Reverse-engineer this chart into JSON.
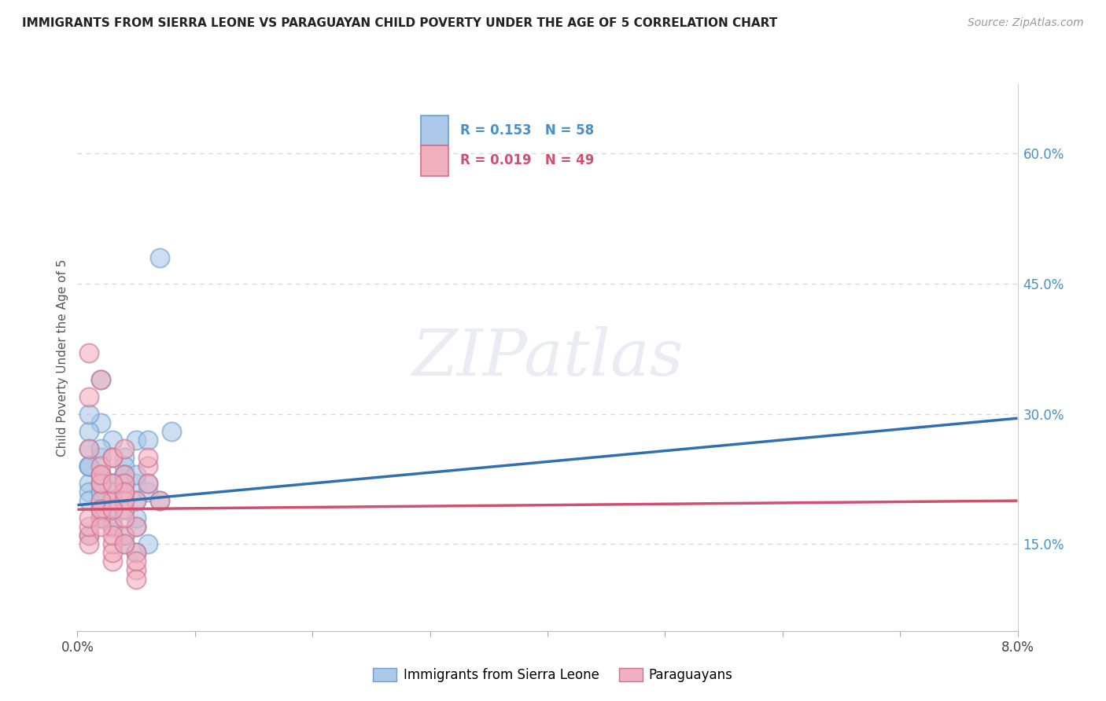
{
  "title": "IMMIGRANTS FROM SIERRA LEONE VS PARAGUAYAN CHILD POVERTY UNDER THE AGE OF 5 CORRELATION CHART",
  "source": "Source: ZipAtlas.com",
  "ylabel": "Child Poverty Under the Age of 5",
  "y_ticks": [
    0.15,
    0.3,
    0.45,
    0.6
  ],
  "y_tick_labels": [
    "15.0%",
    "30.0%",
    "45.0%",
    "60.0%"
  ],
  "x_ticks": [
    0.0,
    0.01,
    0.02,
    0.03,
    0.04,
    0.05,
    0.06,
    0.07,
    0.08
  ],
  "series1_name": "Immigrants from Sierra Leone",
  "series1_color": "#adc8e8",
  "series1_edge_color": "#6a9fd0",
  "series1_R": 0.153,
  "series1_N": 58,
  "series2_name": "Paraguayans",
  "series2_color": "#f0b0c0",
  "series2_edge_color": "#d07090",
  "series2_R": 0.019,
  "series2_N": 49,
  "trendline1_color": "#3070b0",
  "trendline2_color": "#d05070",
  "trendline1_x": [
    0.0,
    0.08
  ],
  "trendline1_y": [
    0.195,
    0.295
  ],
  "trendline2_x": [
    0.0,
    0.08
  ],
  "trendline2_y": [
    0.19,
    0.2
  ],
  "watermark": "ZIPatlas",
  "background_color": "#ffffff",
  "grid_color": "#d8d8d8",
  "title_color": "#222222",
  "sierra_leone_x": [
    0.001,
    0.002,
    0.001,
    0.003,
    0.002,
    0.004,
    0.001,
    0.003,
    0.005,
    0.002,
    0.001,
    0.002,
    0.003,
    0.004,
    0.002,
    0.001,
    0.003,
    0.005,
    0.006,
    0.002,
    0.001,
    0.003,
    0.002,
    0.004,
    0.001,
    0.002,
    0.003,
    0.005,
    0.004,
    0.002,
    0.001,
    0.003,
    0.006,
    0.002,
    0.004,
    0.003,
    0.005,
    0.002,
    0.001,
    0.004,
    0.007,
    0.003,
    0.005,
    0.002,
    0.004,
    0.006,
    0.003,
    0.001,
    0.005,
    0.002,
    0.008,
    0.004,
    0.006,
    0.003,
    0.005,
    0.007,
    0.002,
    0.004
  ],
  "sierra_leone_y": [
    0.22,
    0.2,
    0.24,
    0.2,
    0.23,
    0.25,
    0.21,
    0.19,
    0.27,
    0.18,
    0.24,
    0.2,
    0.17,
    0.22,
    0.29,
    0.26,
    0.19,
    0.22,
    0.27,
    0.21,
    0.16,
    0.21,
    0.34,
    0.23,
    0.28,
    0.19,
    0.22,
    0.2,
    0.24,
    0.18,
    0.2,
    0.27,
    0.15,
    0.21,
    0.23,
    0.22,
    0.17,
    0.25,
    0.3,
    0.22,
    0.48,
    0.2,
    0.18,
    0.23,
    0.16,
    0.21,
    0.18,
    0.24,
    0.14,
    0.22,
    0.28,
    0.19,
    0.22,
    0.17,
    0.23,
    0.2,
    0.26,
    0.15
  ],
  "paraguayan_x": [
    0.001,
    0.002,
    0.003,
    0.001,
    0.004,
    0.002,
    0.003,
    0.005,
    0.001,
    0.002,
    0.003,
    0.004,
    0.002,
    0.001,
    0.003,
    0.005,
    0.002,
    0.004,
    0.001,
    0.003,
    0.002,
    0.004,
    0.003,
    0.001,
    0.005,
    0.002,
    0.003,
    0.004,
    0.002,
    0.001,
    0.003,
    0.005,
    0.004,
    0.002,
    0.006,
    0.003,
    0.004,
    0.005,
    0.002,
    0.004,
    0.003,
    0.006,
    0.004,
    0.005,
    0.003,
    0.007,
    0.002,
    0.004,
    0.006
  ],
  "paraguayan_y": [
    0.37,
    0.34,
    0.25,
    0.32,
    0.19,
    0.23,
    0.17,
    0.2,
    0.16,
    0.18,
    0.13,
    0.21,
    0.24,
    0.15,
    0.21,
    0.14,
    0.19,
    0.23,
    0.17,
    0.2,
    0.22,
    0.16,
    0.25,
    0.18,
    0.12,
    0.2,
    0.15,
    0.22,
    0.19,
    0.26,
    0.14,
    0.17,
    0.2,
    0.22,
    0.24,
    0.16,
    0.18,
    0.13,
    0.23,
    0.21,
    0.19,
    0.25,
    0.15,
    0.11,
    0.22,
    0.2,
    0.17,
    0.26,
    0.22
  ]
}
